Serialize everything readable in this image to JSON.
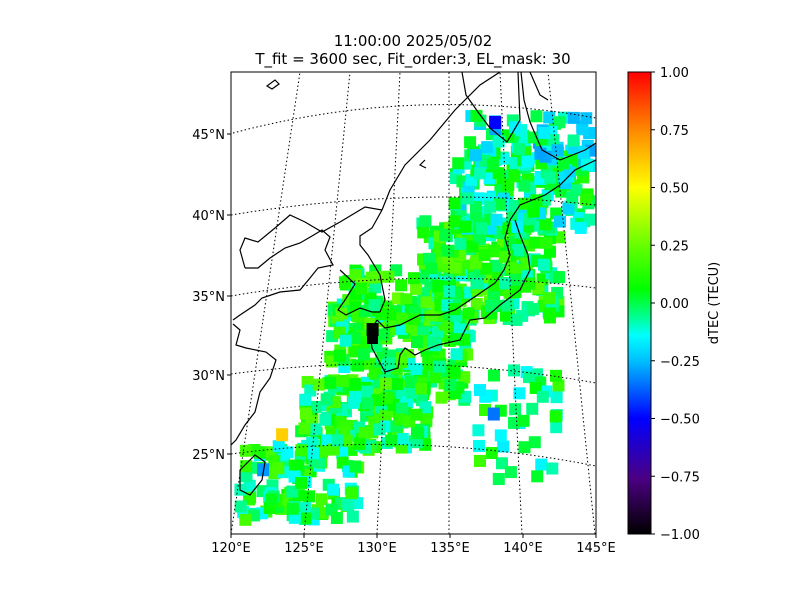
{
  "chart_data": {
    "type": "heatmap",
    "title": "11:00:00 2025/05/02",
    "subtitle": "T_fit = 3600 sec, Fit_order:3, EL_mask: 30",
    "xlim": [
      120,
      145
    ],
    "ylim": [
      20,
      49
    ],
    "x_ticks": [
      "120°E",
      "125°E",
      "130°E",
      "135°E",
      "140°E",
      "145°E"
    ],
    "y_ticks": [
      "25°N",
      "30°N",
      "35°N",
      "40°N",
      "45°N"
    ],
    "x_tick_values": [
      120,
      125,
      130,
      135,
      140,
      145
    ],
    "y_tick_values": [
      25,
      30,
      35,
      40,
      45
    ],
    "grid": "dotted",
    "colorbar": {
      "label": "dTEC (TECU)",
      "range": [
        -1.0,
        1.0
      ],
      "ticks": [
        "1.00",
        "0.75",
        "0.50",
        "0.25",
        "0.00",
        "−0.25",
        "−0.50",
        "−0.75",
        "−1.00"
      ],
      "tick_values": [
        1.0,
        0.75,
        0.5,
        0.25,
        0.0,
        -0.25,
        -0.5,
        -0.75,
        -1.0
      ],
      "colormap": "nipy_spectral-like",
      "stops": [
        "#000000",
        "#4b0082",
        "#0000ff",
        "#00bfff",
        "#00ffff",
        "#00ff80",
        "#00ff00",
        "#aaff00",
        "#ffff00",
        "#ff8800",
        "#ff0000"
      ]
    },
    "notable_points": [
      {
        "lon": 129.7,
        "lat": 32.8,
        "dtec": -1.0
      },
      {
        "lon": 123.5,
        "lat": 26.2,
        "dtec": 0.6
      },
      {
        "lon": 122.2,
        "lat": 24.0,
        "dtec": -0.3
      },
      {
        "lon": 138.1,
        "lat": 45.8,
        "dtec": -0.5
      },
      {
        "lon": 138.0,
        "lat": 27.5,
        "dtec": -0.35
      }
    ],
    "typical_value": 0.05
  }
}
